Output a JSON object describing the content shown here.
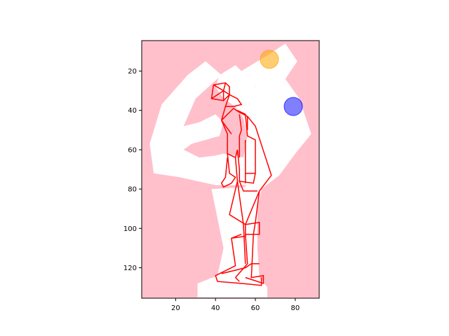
{
  "chart_data": {
    "type": "scatter",
    "title": "",
    "xlabel": "",
    "ylabel": "",
    "xlim": [
      3,
      92
    ],
    "ylim": [
      135.5,
      4.5
    ],
    "y_inverted": true,
    "grid": false,
    "legend": "none",
    "xticks": [
      20,
      40,
      60,
      80
    ],
    "yticks": [
      20,
      40,
      60,
      80,
      100,
      120
    ],
    "background_color": "#ffc0cb",
    "silhouette_color": "#ffffff",
    "skeleton_color": "#ff0000",
    "silhouette_polygons": [
      [
        [
          7,
          57
        ],
        [
          13,
          37
        ],
        [
          26,
          22
        ],
        [
          35,
          15
        ],
        [
          43,
          22
        ],
        [
          30,
          34
        ],
        [
          24,
          48
        ],
        [
          32,
          46
        ],
        [
          40,
          42
        ],
        [
          44,
          46
        ],
        [
          42,
          53
        ],
        [
          28,
          57
        ],
        [
          24,
          60
        ],
        [
          32,
          64
        ],
        [
          40,
          63
        ],
        [
          44,
          62
        ],
        [
          50,
          63
        ],
        [
          54,
          64
        ],
        [
          56,
          53
        ],
        [
          54,
          44
        ],
        [
          50,
          38
        ],
        [
          44,
          34
        ],
        [
          40,
          28
        ],
        [
          42,
          22
        ],
        [
          50,
          17
        ],
        [
          57,
          24
        ],
        [
          62,
          31
        ],
        [
          70,
          42
        ],
        [
          72,
          52
        ],
        [
          68,
          66
        ],
        [
          60,
          74
        ],
        [
          55,
          78
        ],
        [
          40,
          78
        ],
        [
          22,
          74
        ],
        [
          9,
          72
        ]
      ],
      [
        [
          53,
          20
        ],
        [
          66,
          12
        ],
        [
          75,
          6
        ],
        [
          81,
          15
        ],
        [
          75,
          24
        ],
        [
          82,
          34
        ],
        [
          88,
          52
        ],
        [
          80,
          62
        ],
        [
          72,
          73
        ],
        [
          63,
          80
        ],
        [
          61,
          90
        ],
        [
          61,
          110
        ],
        [
          62,
          125
        ],
        [
          66,
          130
        ],
        [
          66,
          135
        ],
        [
          31,
          135
        ],
        [
          31,
          128
        ],
        [
          41,
          124
        ],
        [
          44,
          110
        ],
        [
          40,
          90
        ],
        [
          38,
          80
        ],
        [
          55,
          79
        ],
        [
          58,
          70
        ],
        [
          62,
          58
        ],
        [
          66,
          48
        ],
        [
          63,
          36
        ],
        [
          60,
          28
        ]
      ]
    ],
    "skeleton_segments": [
      [
        [
          39,
          27
        ],
        [
          45,
          26
        ],
        [
          47,
          28
        ],
        [
          47,
          32
        ],
        [
          44,
          35
        ],
        [
          38,
          34
        ],
        [
          39,
          27
        ]
      ],
      [
        [
          39,
          27
        ],
        [
          44,
          30
        ],
        [
          45,
          26
        ]
      ],
      [
        [
          44,
          30
        ],
        [
          47,
          32
        ]
      ],
      [
        [
          44,
          30
        ],
        [
          44,
          35
        ]
      ],
      [
        [
          44,
          30
        ],
        [
          38,
          34
        ]
      ],
      [
        [
          47,
          32
        ],
        [
          45,
          38
        ],
        [
          49,
          38
        ],
        [
          53,
          37
        ],
        [
          51,
          34
        ],
        [
          47,
          32
        ]
      ],
      [
        [
          45,
          38
        ],
        [
          43,
          45
        ]
      ],
      [
        [
          43,
          45
        ],
        [
          49,
          39
        ],
        [
          52,
          41
        ],
        [
          56,
          43
        ]
      ],
      [
        [
          43,
          45
        ],
        [
          48,
          52
        ]
      ],
      [
        [
          56,
          43
        ],
        [
          60,
          48
        ],
        [
          68,
          73
        ],
        [
          62,
          81
        ],
        [
          60,
          97
        ],
        [
          59,
          103
        ],
        [
          58,
          125
        ],
        [
          64,
          124
        ],
        [
          64,
          128
        ],
        [
          55,
          125
        ]
      ],
      [
        [
          43,
          45
        ],
        [
          46,
          52
        ],
        [
          46,
          57
        ],
        [
          46,
          62
        ],
        [
          50,
          64
        ],
        [
          51,
          60
        ]
      ],
      [
        [
          56,
          43
        ],
        [
          56,
          50
        ]
      ],
      [
        [
          51,
          40
        ],
        [
          55,
          42
        ],
        [
          56,
          53
        ],
        [
          60,
          55
        ],
        [
          60,
          72
        ],
        [
          59,
          77
        ],
        [
          52,
          76
        ],
        [
          54,
          81
        ],
        [
          61,
          81
        ]
      ],
      [
        [
          52,
          42
        ],
        [
          53,
          50
        ],
        [
          52,
          53
        ],
        [
          52,
          64
        ]
      ],
      [
        [
          51,
          60
        ],
        [
          52,
          70
        ],
        [
          52,
          76
        ]
      ],
      [
        [
          55,
          55
        ],
        [
          55,
          77
        ]
      ],
      [
        [
          55,
          72
        ],
        [
          60,
          72
        ]
      ],
      [
        [
          46,
          64
        ],
        [
          45,
          74
        ],
        [
          43,
          77
        ],
        [
          44,
          79
        ],
        [
          48,
          77
        ],
        [
          50,
          74
        ],
        [
          47,
          72
        ],
        [
          46,
          62
        ]
      ],
      [
        [
          50,
          64
        ],
        [
          51,
          76
        ]
      ],
      [
        [
          51,
          76
        ],
        [
          47,
          93
        ],
        [
          55,
          98
        ],
        [
          55,
          103
        ],
        [
          56,
          118
        ],
        [
          50,
          125
        ]
      ],
      [
        [
          51,
          76
        ],
        [
          54,
          98
        ],
        [
          55,
          118
        ]
      ],
      [
        [
          62,
          81
        ],
        [
          55,
          98
        ]
      ],
      [
        [
          55,
          98
        ],
        [
          62,
          97
        ],
        [
          62,
          103
        ],
        [
          55,
          103
        ]
      ],
      [
        [
          53,
          103
        ],
        [
          48,
          105
        ],
        [
          50,
          119
        ],
        [
          42,
          123
        ]
      ],
      [
        [
          48,
          105
        ],
        [
          55,
          104
        ]
      ],
      [
        [
          42,
          123
        ],
        [
          40,
          124
        ],
        [
          41,
          127
        ],
        [
          53,
          128
        ],
        [
          63,
          129
        ],
        [
          63,
          125
        ]
      ],
      [
        [
          43,
          123
        ],
        [
          55,
          120
        ],
        [
          58,
          118
        ],
        [
          62,
          118
        ]
      ],
      [
        [
          50,
          125
        ],
        [
          52,
          127
        ]
      ]
    ],
    "markers": [
      {
        "x": 67,
        "y": 14,
        "color": "#ffa500",
        "alpha": 0.55,
        "radius": 13
      },
      {
        "x": 79,
        "y": 38,
        "color": "#0000ff",
        "alpha": 0.5,
        "radius": 13
      }
    ]
  }
}
